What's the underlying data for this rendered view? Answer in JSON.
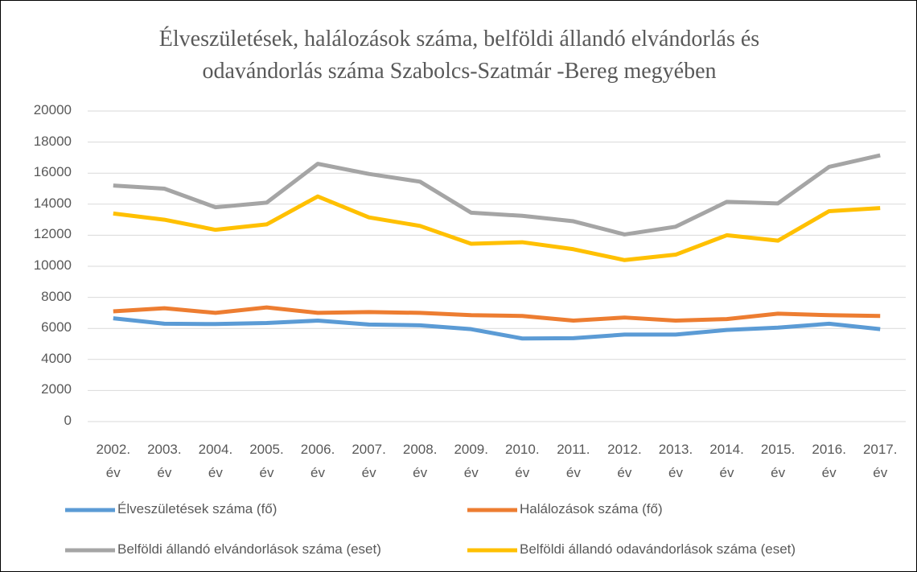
{
  "chart_data": {
    "type": "line",
    "title": "Élveszületések, halálozások száma, belföldi állandó elvándorlás és odavándorlás száma Szabolcs-Szatmár -Bereg megyében",
    "categories": [
      "2002. év",
      "2003. év",
      "2004. év",
      "2005. év",
      "2006. év",
      "2007. év",
      "2008. év",
      "2009. év",
      "2010. év",
      "2011. év",
      "2012. év",
      "2013. év",
      "2014. év",
      "2015. év",
      "2016. év",
      "2017. év"
    ],
    "series": [
      {
        "name": "Élveszületések száma (fő)",
        "color": "#5b9bd5",
        "values": [
          6650,
          6300,
          6280,
          6350,
          6500,
          6250,
          6200,
          5950,
          5350,
          5370,
          5600,
          5600,
          5900,
          6050,
          6300,
          5950
        ]
      },
      {
        "name": "Halálozások száma (fő)",
        "color": "#ed7d31",
        "values": [
          7100,
          7300,
          7000,
          7350,
          7000,
          7050,
          7000,
          6850,
          6800,
          6500,
          6700,
          6500,
          6600,
          6950,
          6850,
          6800
        ]
      },
      {
        "name": "Belföldi állandó elvándorlások száma (eset)",
        "color": "#a5a5a5",
        "values": [
          15200,
          15000,
          13800,
          14100,
          16600,
          15950,
          15450,
          13450,
          13250,
          12900,
          12050,
          12550,
          14150,
          14050,
          16400,
          17150
        ]
      },
      {
        "name": "Belföldi állandó odavándorlások száma (eset)",
        "color": "#ffc000",
        "values": [
          13400,
          13000,
          12350,
          12700,
          14500,
          13150,
          12600,
          11450,
          11550,
          11100,
          10400,
          10750,
          12000,
          11650,
          13550,
          13750
        ]
      }
    ],
    "ylim": [
      0,
      20000
    ],
    "yticks": [
      0,
      2000,
      4000,
      6000,
      8000,
      10000,
      12000,
      14000,
      16000,
      18000,
      20000
    ],
    "grid": true
  }
}
